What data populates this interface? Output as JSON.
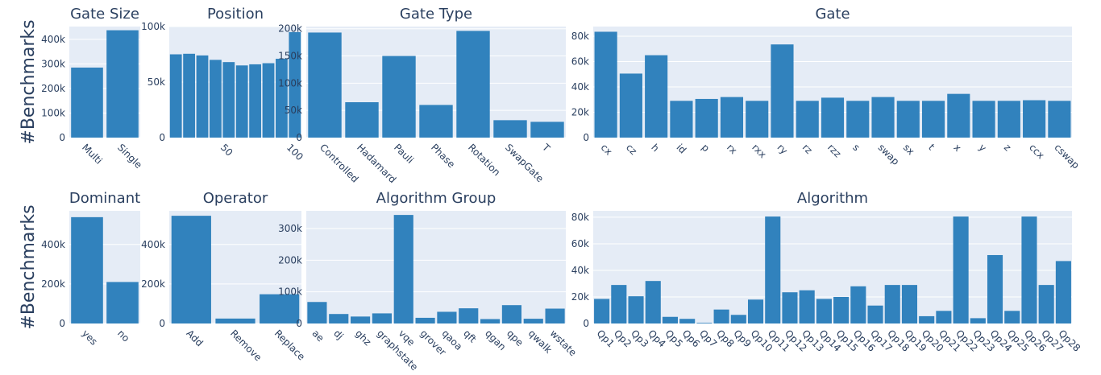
{
  "chart_data": [
    {
      "type": "bar",
      "title": "Gate Size",
      "ylabel": "#Benchmarks",
      "color": "#3182bd",
      "grid": true,
      "categories": [
        "Multi",
        "Single"
      ],
      "values": [
        285000,
        437000
      ],
      "ylim": [
        0,
        452000
      ],
      "yticks": [
        0,
        {
          "value": 100000,
          "label": "100k"
        },
        {
          "value": 200000,
          "label": "200k"
        },
        {
          "value": 300000,
          "label": "300k"
        },
        {
          "value": 400000,
          "label": "400k"
        }
      ]
    },
    {
      "type": "histogram",
      "title": "Position",
      "color": "#3182bd",
      "grid": true,
      "bins": [
        5,
        15,
        25,
        35,
        45,
        55,
        65,
        75,
        85,
        95,
        105
      ],
      "values": [
        75000,
        75500,
        74000,
        70000,
        68000,
        65000,
        66000,
        67000,
        71000,
        95000
      ],
      "xlim": [
        5,
        105
      ],
      "xticks": [
        50,
        100
      ],
      "ylim": [
        0,
        100000
      ],
      "yticks": [
        0,
        {
          "value": 50000,
          "label": "50k"
        },
        {
          "value": 100000,
          "label": "100k"
        }
      ]
    },
    {
      "type": "bar",
      "title": "Gate Type",
      "color": "#3182bd",
      "grid": true,
      "categories": [
        "Controlled",
        "Hadamard",
        "Pauli",
        "Phase",
        "Rotation",
        "SwapGate",
        "T"
      ],
      "values": [
        193000,
        65000,
        150000,
        60000,
        196000,
        32000,
        29000
      ],
      "ylim": [
        0,
        204000
      ],
      "yticks": [
        0,
        {
          "value": 50000,
          "label": "50k"
        },
        {
          "value": 100000,
          "label": "100k"
        },
        {
          "value": 150000,
          "label": "150k"
        },
        {
          "value": 200000,
          "label": "200k"
        }
      ]
    },
    {
      "type": "bar",
      "title": "Gate",
      "color": "#3182bd",
      "grid": true,
      "categories": [
        "cx",
        "cz",
        "h",
        "id",
        "p",
        "rx",
        "rxx",
        "ry",
        "rz",
        "rzz",
        "s",
        "swap",
        "sx",
        "t",
        "x",
        "y",
        "z",
        "ccx",
        "cswap"
      ],
      "values": [
        83500,
        50500,
        65000,
        29000,
        30500,
        32000,
        29000,
        73500,
        29000,
        31500,
        29000,
        32000,
        29000,
        29000,
        34500,
        29000,
        29000,
        29500,
        29000
      ],
      "ylim": [
        0,
        87600
      ],
      "yticks": [
        0,
        {
          "value": 20000,
          "label": "20k"
        },
        {
          "value": 40000,
          "label": "40k"
        },
        {
          "value": 60000,
          "label": "60k"
        },
        {
          "value": 80000,
          "label": "80k"
        }
      ]
    },
    {
      "type": "bar",
      "title": "Dominant",
      "ylabel": "#Benchmarks",
      "color": "#3182bd",
      "grid": true,
      "categories": [
        "yes",
        "no"
      ],
      "values": [
        538000,
        210000
      ],
      "ylim": [
        0,
        570000
      ],
      "yticks": [
        0,
        {
          "value": 200000,
          "label": "200k"
        },
        {
          "value": 400000,
          "label": "400k"
        }
      ]
    },
    {
      "type": "bar",
      "title": "Operator",
      "color": "#3182bd",
      "grid": true,
      "categories": [
        "Add",
        "Remove",
        "Replace"
      ],
      "values": [
        545000,
        25000,
        148000
      ],
      "ylim": [
        0,
        570000
      ],
      "yticks": [
        0,
        {
          "value": 200000,
          "label": "200k"
        },
        {
          "value": 400000,
          "label": "400k"
        }
      ]
    },
    {
      "type": "bar",
      "title": "Algorithm Group",
      "color": "#3182bd",
      "grid": true,
      "categories": [
        "ae",
        "dj",
        "ghz",
        "graphstate",
        "vqe",
        "grover",
        "qaoa",
        "qft",
        "qgan",
        "qpe",
        "qwalk",
        "wstate"
      ],
      "values": [
        68000,
        30000,
        22000,
        32000,
        343000,
        18000,
        37000,
        48000,
        14000,
        58000,
        15000,
        47000
      ],
      "ylim": [
        0,
        356000
      ],
      "yticks": [
        0,
        {
          "value": 100000,
          "label": "100k"
        },
        {
          "value": 200000,
          "label": "200k"
        },
        {
          "value": 300000,
          "label": "300k"
        }
      ]
    },
    {
      "type": "bar",
      "title": "Algorithm",
      "color": "#3182bd",
      "grid": true,
      "categories": [
        "Qp1",
        "Qp2",
        "Qp3",
        "Qp4",
        "Qp5",
        "Qp6",
        "Qp7",
        "Qp8",
        "Qp9",
        "Qp10",
        "Qp11",
        "Qp12",
        "Qp13",
        "Qp14",
        "Qp15",
        "Qp16",
        "Qp17",
        "Qp18",
        "Qp19",
        "Qp20",
        "Qp21",
        "Qp22",
        "Qp23",
        "Qp24",
        "Qp25",
        "Qp26",
        "Qp27",
        "Qp28"
      ],
      "values": [
        18500,
        29000,
        20500,
        32000,
        5000,
        3500,
        500,
        10500,
        6500,
        18000,
        80500,
        23500,
        25000,
        18500,
        20000,
        28000,
        13500,
        29000,
        29000,
        5500,
        9500,
        80500,
        4000,
        51500,
        9500,
        80500,
        29000,
        47000
      ],
      "ylim": [
        0,
        84800
      ],
      "yticks": [
        0,
        {
          "value": 20000,
          "label": "20k"
        },
        {
          "value": 40000,
          "label": "40k"
        },
        {
          "value": 60000,
          "label": "60k"
        },
        {
          "value": 80000,
          "label": "80k"
        }
      ]
    }
  ]
}
